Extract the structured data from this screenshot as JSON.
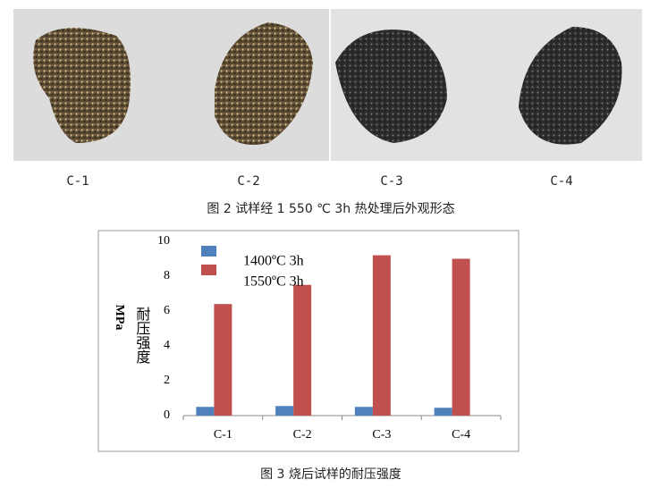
{
  "figure2": {
    "labels": [
      "C-1",
      "C-2",
      "C-3",
      "C-4"
    ],
    "caption": "图 2  试样经 1 550 ℃ 3h 热处理后外观形态"
  },
  "chart_data": {
    "type": "bar",
    "caption": "图 3   烧后试样的耐压强度",
    "ylabel": "耐压强度",
    "yunit": "MPa",
    "categories": [
      "C-1",
      "C-2",
      "C-3",
      "C-4"
    ],
    "series": [
      {
        "name": "1400ºC  3h",
        "color": "#4f81bd",
        "values": [
          0.5,
          0.55,
          0.5,
          0.45
        ]
      },
      {
        "name": "1550ºC  3h",
        "color": "#c0504d",
        "values": [
          6.4,
          7.5,
          9.2,
          9.0
        ]
      }
    ],
    "ylim": [
      0,
      10
    ],
    "yticks": [
      0,
      2,
      4,
      6,
      8,
      10
    ],
    "grid": false
  }
}
